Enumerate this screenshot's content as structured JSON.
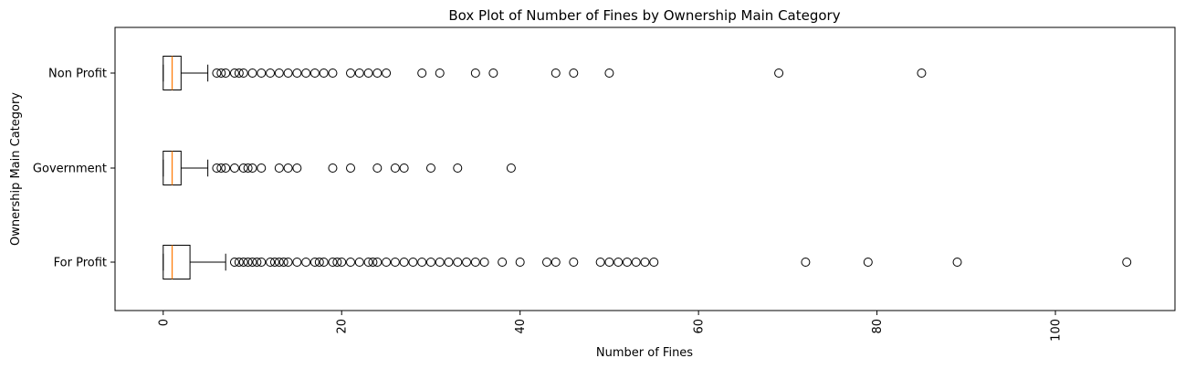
{
  "chart_data": {
    "type": "boxplot",
    "orientation": "horizontal",
    "title": "Box Plot of Number of Fines by Ownership Main Category",
    "xlabel": "Number of Fines",
    "ylabel": "Ownership Main Category",
    "xlim": [
      -5.4,
      113.4
    ],
    "x_ticks": [
      0,
      20,
      40,
      60,
      80,
      100
    ],
    "x_tick_rotation": 90,
    "grid": false,
    "colors": {
      "box": "#000000",
      "median": "#ff7f0e",
      "flier": "#000000"
    },
    "categories": [
      "For Profit",
      "Government",
      "Non Profit"
    ],
    "series": [
      {
        "name": "For Profit",
        "whislo": 0,
        "q1": 0,
        "median": 1,
        "q3": 3,
        "whishi": 7,
        "fliers": [
          8,
          8.5,
          9,
          9.5,
          10,
          10.5,
          11,
          12,
          12.5,
          13,
          13.5,
          14,
          15,
          16,
          17,
          17.5,
          18,
          19,
          19.5,
          20,
          21,
          22,
          23,
          23.5,
          24,
          25,
          26,
          27,
          28,
          29,
          30,
          31,
          32,
          33,
          34,
          35,
          36,
          38,
          40,
          43,
          44,
          46,
          49,
          50,
          51,
          52,
          53,
          54,
          55,
          72,
          79,
          89,
          108
        ]
      },
      {
        "name": "Government",
        "whislo": 0,
        "q1": 0,
        "median": 1,
        "q3": 2,
        "whishi": 5,
        "fliers": [
          6,
          6.5,
          7,
          8,
          9,
          9.5,
          10,
          11,
          13,
          14,
          15,
          19,
          21,
          24,
          26,
          27,
          30,
          33,
          39
        ]
      },
      {
        "name": "Non Profit",
        "whislo": 0,
        "q1": 0,
        "median": 1,
        "q3": 2,
        "whishi": 5,
        "fliers": [
          6,
          6.5,
          7,
          8,
          8.5,
          9,
          10,
          11,
          12,
          13,
          14,
          15,
          16,
          17,
          18,
          19,
          21,
          22,
          23,
          24,
          25,
          29,
          31,
          35,
          37,
          44,
          46,
          50,
          69,
          85
        ]
      }
    ]
  }
}
